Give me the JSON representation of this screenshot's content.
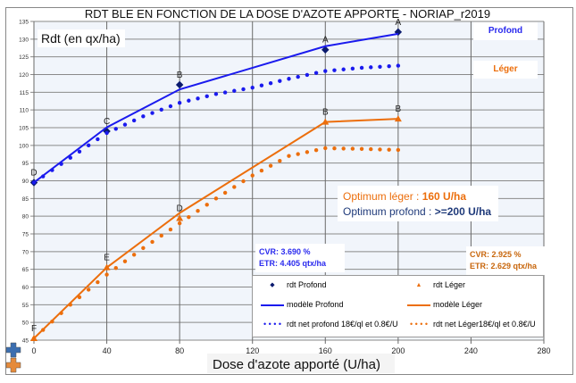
{
  "chart_data": {
    "type": "line",
    "title": "RDT BLE EN FONCTION DE LA DOSE D'AZOTE APPORTE - NORIAP_r2019",
    "xlabel": "Dose d'azote apporté (U/ha)",
    "ylabel": "Rdt (en qx/ha)",
    "xlim": [
      0,
      280
    ],
    "ylim": [
      45,
      135
    ],
    "xticks": [
      0,
      40,
      80,
      120,
      160,
      200,
      240,
      280
    ],
    "yticks": [
      45,
      50,
      55,
      60,
      65,
      70,
      75,
      80,
      85,
      90,
      95,
      100,
      105,
      110,
      115,
      120,
      125,
      130,
      135
    ],
    "grid": true,
    "legend_position": "bottom-right",
    "colors": {
      "profond": "#1a1aee",
      "profond_points": "#0a1a6e",
      "leger": "#ec6e0c"
    },
    "series": [
      {
        "name": "rdt Profond",
        "kind": "points",
        "color": "#0a1a6e",
        "x": [
          0,
          40,
          80,
          160,
          200
        ],
        "y": [
          89.5,
          104,
          117.1,
          127,
          132
        ],
        "labels": [
          "D",
          "C",
          "B",
          "A",
          "A"
        ]
      },
      {
        "name": "modèle Profond",
        "kind": "line",
        "color": "#1a1aee",
        "x": [
          0,
          40,
          80,
          160,
          200
        ],
        "y": [
          89.5,
          105.1,
          115.8,
          128,
          131.5
        ]
      },
      {
        "name": "rdt net profond  18€/ql et 0.8€/U",
        "kind": "dots",
        "color": "#1a1aee",
        "x": [
          0,
          20,
          40,
          60,
          80,
          100,
          120,
          140,
          160,
          180,
          200
        ],
        "y": [
          89.5,
          96.5,
          103.5,
          108.2,
          112,
          114.5,
          116.3,
          118.8,
          121,
          121.9,
          122.5
        ]
      },
      {
        "name": "rdt  Léger",
        "kind": "points",
        "color": "#ec6e0c",
        "x": [
          0,
          40,
          80,
          160,
          200
        ],
        "y": [
          45.5,
          65.5,
          79.4,
          106.6,
          107.5
        ],
        "labels": [
          "F",
          "E",
          "D",
          "B",
          "B"
        ]
      },
      {
        "name": "modèle Léger",
        "kind": "line",
        "color": "#ec6e0c",
        "x": [
          0,
          40,
          80,
          160,
          200
        ],
        "y": [
          45.5,
          65.5,
          80.9,
          106.6,
          107.5
        ]
      },
      {
        "name": "rdt net Léger18€/ql et 0.8€/U",
        "kind": "dots",
        "color": "#ec6e0c",
        "x": [
          0,
          20,
          40,
          60,
          80,
          100,
          120,
          140,
          160,
          180,
          200
        ],
        "y": [
          45.5,
          55,
          63.5,
          71,
          78,
          85,
          91.5,
          97,
          99.2,
          99,
          98.7
        ]
      }
    ]
  },
  "labels": {
    "profond_tag": "Profond",
    "leger_tag": "Léger",
    "optimum_leger_prefix": "Optimum léger : ",
    "optimum_leger_value": "160 U/ha",
    "optimum_profond_prefix": "Optimum profond : ",
    "optimum_profond_value": ">=200 U/ha",
    "profond_cvr": "CVR: 3.690 %",
    "profond_etr": "ETR: 4.405 qtx/ha",
    "leger_cvr": "CVR: 2.925 %",
    "leger_etr": "ETR: 2.629 qtx/ha"
  },
  "icons": [
    "plus-blue-icon",
    "plus-orange-icon"
  ]
}
